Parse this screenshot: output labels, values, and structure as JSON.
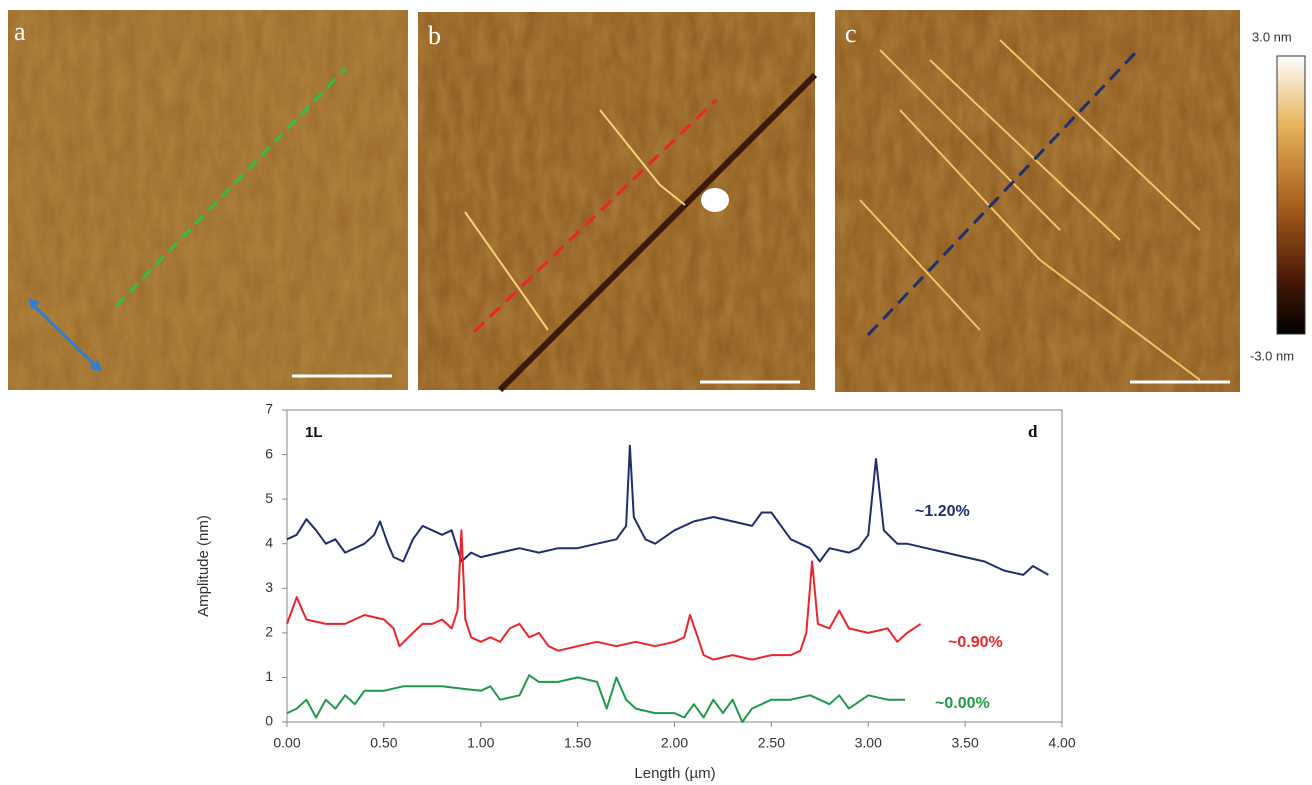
{
  "images": [
    {
      "label": "a"
    },
    {
      "label": "b"
    },
    {
      "label": "c"
    }
  ],
  "colorbar": {
    "max_label": "3.0 nm",
    "min_label": "-3.0 nm"
  },
  "chart_data": {
    "type": "line",
    "xlabel": "Length (µm)",
    "ylabel": "Amplitude (nm)",
    "xlim": [
      0,
      4
    ],
    "ylim": [
      0,
      7
    ],
    "xticks": [
      {
        "value": 0,
        "label": "0.00"
      },
      {
        "value": 0.5,
        "label": "0.50"
      },
      {
        "value": 1,
        "label": "1.00"
      },
      {
        "value": 1.5,
        "label": "1.50"
      },
      {
        "value": 2,
        "label": "2.00"
      },
      {
        "value": 2.5,
        "label": "2.50"
      },
      {
        "value": 3,
        "label": "3.00"
      },
      {
        "value": 3.5,
        "label": "3.50"
      },
      {
        "value": 4,
        "label": "4.00"
      }
    ],
    "yticks": [
      0,
      1,
      2,
      3,
      4,
      5,
      6,
      7
    ],
    "panel_labels": [
      "1L",
      "d"
    ],
    "series": [
      {
        "name": "~1.20%",
        "color": "#1f2f6e",
        "x": [
          0,
          0.05,
          0.1,
          0.15,
          0.2,
          0.25,
          0.3,
          0.35,
          0.4,
          0.45,
          0.48,
          0.52,
          0.55,
          0.6,
          0.65,
          0.7,
          0.75,
          0.8,
          0.85,
          0.9,
          0.95,
          1.0,
          1.1,
          1.2,
          1.3,
          1.4,
          1.5,
          1.6,
          1.7,
          1.75,
          1.77,
          1.79,
          1.85,
          1.9,
          2.0,
          2.1,
          2.2,
          2.3,
          2.4,
          2.45,
          2.5,
          2.55,
          2.6,
          2.65,
          2.7,
          2.75,
          2.8,
          2.9,
          2.95,
          3.0,
          3.04,
          3.08,
          3.15,
          3.2,
          3.3,
          3.4,
          3.5,
          3.6,
          3.7,
          3.8,
          3.85,
          3.93
        ],
        "values": [
          4.1,
          4.2,
          4.55,
          4.3,
          4.0,
          4.1,
          3.8,
          3.9,
          4.0,
          4.2,
          4.5,
          4.0,
          3.7,
          3.6,
          4.1,
          4.4,
          4.3,
          4.2,
          4.3,
          3.6,
          3.8,
          3.7,
          3.8,
          3.9,
          3.8,
          3.9,
          3.9,
          4.0,
          4.1,
          4.4,
          6.2,
          4.6,
          4.1,
          4.0,
          4.3,
          4.5,
          4.6,
          4.5,
          4.4,
          4.7,
          4.7,
          4.4,
          4.1,
          4.0,
          3.9,
          3.6,
          3.9,
          3.8,
          3.9,
          4.2,
          5.9,
          4.3,
          4.0,
          4.0,
          3.9,
          3.8,
          3.7,
          3.6,
          3.4,
          3.3,
          3.5,
          3.3
        ]
      },
      {
        "name": "~0.90%",
        "color": "#e8262b",
        "x": [
          0,
          0.05,
          0.1,
          0.2,
          0.3,
          0.4,
          0.5,
          0.55,
          0.58,
          0.65,
          0.7,
          0.75,
          0.8,
          0.85,
          0.88,
          0.9,
          0.92,
          0.95,
          1.0,
          1.05,
          1.1,
          1.15,
          1.2,
          1.25,
          1.3,
          1.35,
          1.4,
          1.5,
          1.6,
          1.7,
          1.8,
          1.9,
          2.0,
          2.05,
          2.08,
          2.12,
          2.15,
          2.2,
          2.3,
          2.4,
          2.5,
          2.6,
          2.65,
          2.68,
          2.71,
          2.74,
          2.8,
          2.85,
          2.9,
          3.0,
          3.1,
          3.15,
          3.2,
          3.27
        ],
        "values": [
          2.2,
          2.8,
          2.3,
          2.2,
          2.2,
          2.4,
          2.3,
          2.1,
          1.7,
          2.0,
          2.2,
          2.2,
          2.3,
          2.1,
          2.5,
          4.3,
          2.3,
          1.9,
          1.8,
          1.9,
          1.8,
          2.1,
          2.2,
          1.9,
          2.0,
          1.7,
          1.6,
          1.7,
          1.8,
          1.7,
          1.8,
          1.7,
          1.8,
          1.9,
          2.4,
          1.9,
          1.5,
          1.4,
          1.5,
          1.4,
          1.5,
          1.5,
          1.6,
          2.0,
          3.6,
          2.2,
          2.1,
          2.5,
          2.1,
          2.0,
          2.1,
          1.8,
          2.0,
          2.2
        ]
      },
      {
        "name": "~0.00%",
        "color": "#1f9a4a",
        "x": [
          0,
          0.05,
          0.1,
          0.15,
          0.2,
          0.25,
          0.3,
          0.35,
          0.4,
          0.5,
          0.6,
          0.7,
          0.8,
          0.9,
          1.0,
          1.05,
          1.1,
          1.2,
          1.25,
          1.3,
          1.4,
          1.5,
          1.6,
          1.65,
          1.7,
          1.75,
          1.8,
          1.9,
          2.0,
          2.05,
          2.1,
          2.15,
          2.2,
          2.25,
          2.3,
          2.35,
          2.4,
          2.5,
          2.6,
          2.7,
          2.8,
          2.85,
          2.9,
          3.0,
          3.1,
          3.19
        ],
        "values": [
          0.2,
          0.3,
          0.5,
          0.1,
          0.5,
          0.3,
          0.6,
          0.4,
          0.7,
          0.7,
          0.8,
          0.8,
          0.8,
          0.75,
          0.7,
          0.8,
          0.5,
          0.6,
          1.05,
          0.9,
          0.9,
          1.0,
          0.9,
          0.3,
          1.0,
          0.5,
          0.3,
          0.2,
          0.2,
          0.1,
          0.4,
          0.1,
          0.5,
          0.2,
          0.5,
          0.0,
          0.3,
          0.5,
          0.5,
          0.6,
          0.4,
          0.6,
          0.3,
          0.6,
          0.5,
          0.5
        ]
      }
    ]
  }
}
